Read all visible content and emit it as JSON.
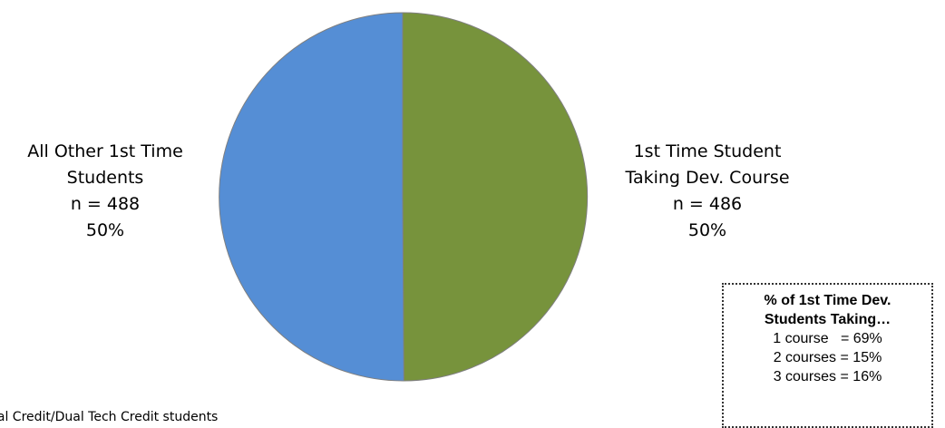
{
  "chart_data": {
    "type": "pie",
    "slices": [
      {
        "name_lines": [
          "1st Time Student",
          "Taking Dev. Course"
        ],
        "n_label": "n = 486",
        "value": 486,
        "percent_label": "50%",
        "color": "#77933C"
      },
      {
        "name_lines": [
          "All Other 1st Time",
          "Students"
        ],
        "n_label": "n = 488",
        "value": 488,
        "percent_label": "50%",
        "color": "#558ED5"
      }
    ]
  },
  "inset": {
    "title_lines": [
      "% of 1st Time Dev.",
      "Students Taking…"
    ],
    "items": [
      "1 course   = 69%",
      "2 courses = 15%",
      "3 courses = 16%"
    ]
  },
  "footnote": "ual Credit/Dual Tech Credit students"
}
